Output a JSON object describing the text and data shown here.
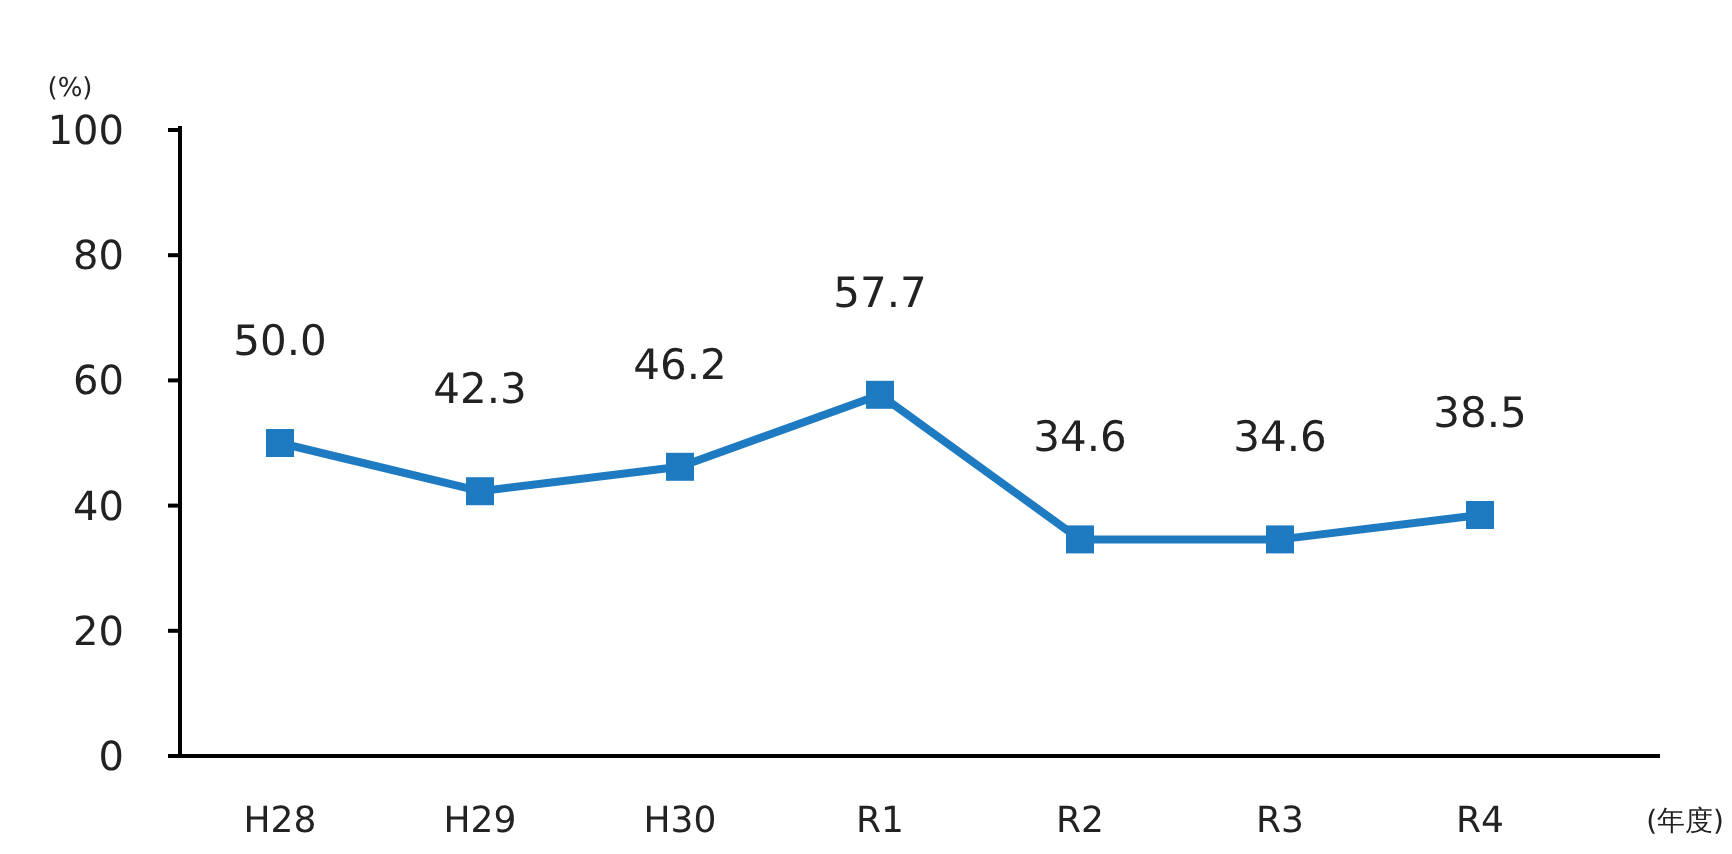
{
  "chart_data": {
    "type": "line",
    "xlabel": "(年度)",
    "ylabel": "(%)",
    "categories": [
      "H28",
      "H29",
      "H30",
      "R1",
      "R2",
      "R3",
      "R4"
    ],
    "series": [
      {
        "color": "#1f7bc1",
        "values": [
          50.0,
          42.3,
          46.2,
          57.7,
          34.6,
          34.6,
          38.5
        ],
        "value_labels": [
          "50.0",
          "42.3",
          "46.2",
          "57.7",
          "34.6",
          "34.6",
          "38.5"
        ]
      }
    ],
    "ylim": [
      0,
      100
    ],
    "yticks": [
      0,
      20,
      40,
      60,
      80,
      100
    ],
    "marker": "square"
  }
}
